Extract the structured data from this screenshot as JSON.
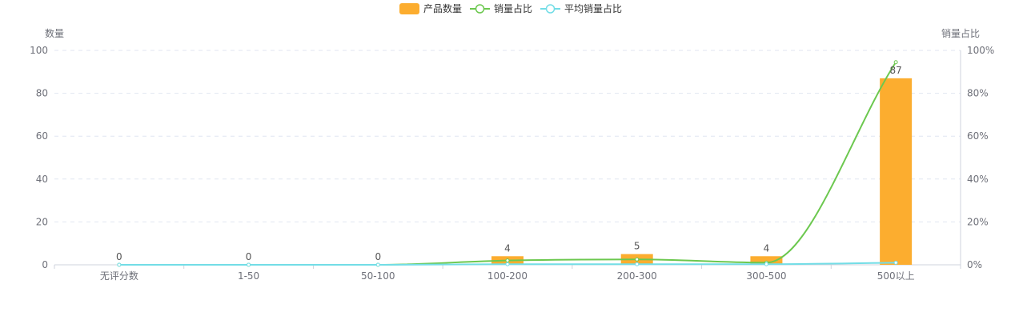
{
  "chart_data": {
    "type": "bar",
    "categories": [
      "无评分数",
      "1-50",
      "50-100",
      "100-200",
      "200-300",
      "300-500",
      "500以上"
    ],
    "series": [
      {
        "name": "产品数量",
        "type": "bar",
        "axis": "left",
        "values": [
          0,
          0,
          0,
          4,
          5,
          4,
          87
        ],
        "color": "#fcad2f",
        "labels": [
          "0",
          "0",
          "0",
          "4",
          "5",
          "4",
          "87"
        ]
      },
      {
        "name": "销量占比",
        "type": "line",
        "axis": "right",
        "values": [
          0,
          0,
          0,
          2,
          2.5,
          1,
          94.5
        ],
        "color": "#6cc84f"
      },
      {
        "name": "平均销量占比",
        "type": "line",
        "axis": "right",
        "values": [
          0,
          0,
          0,
          0.3,
          0.3,
          0.3,
          1
        ],
        "color": "#73dde6"
      }
    ],
    "ylabel": "数量",
    "y2label": "销量占比",
    "ylim": [
      0,
      100
    ],
    "y2lim": [
      0,
      100
    ],
    "yticks": [
      "0",
      "20",
      "40",
      "60",
      "80",
      "100"
    ],
    "y2ticks": [
      "0%",
      "20%",
      "40%",
      "60%",
      "80%",
      "100%"
    ],
    "grid": true,
    "legend_position": "top-center"
  }
}
